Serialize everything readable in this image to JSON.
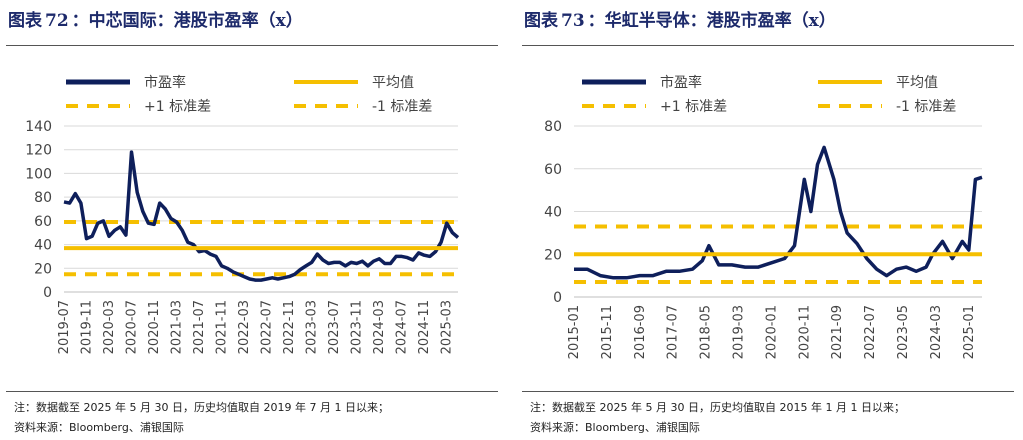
{
  "panels": [
    {
      "fig_label": "图表",
      "fig_num": "72",
      "title": "：中芯国际：港股市盈率（x）",
      "note": "注：数据截至 2025 年 5 月 30 日，历史均值取自 2019 年 7 月 1 日以来；",
      "source": "资料来源：Bloomberg、浦银国际",
      "chart_data": {
        "type": "line",
        "legend": [
          "市盈率",
          "平均值",
          "+1 标准差",
          "-1 标准差"
        ],
        "y_ticks": [
          "0",
          "20",
          "40",
          "60",
          "80",
          "100",
          "120",
          "140"
        ],
        "ylim": [
          0,
          140
        ],
        "x_ticks": [
          "2019-07",
          "2019-11",
          "2020-03",
          "2020-07",
          "2020-11",
          "2021-03",
          "2021-07",
          "2021-11",
          "2022-03",
          "2022-07",
          "2022-11",
          "2023-03",
          "2023-07",
          "2023-11",
          "2024-03",
          "2024-07",
          "2024-11",
          "2025-03"
        ],
        "x_range": [
          "2019-07",
          "2025-05"
        ],
        "mean": 37,
        "plus1sd": 59,
        "minus1sd": 15,
        "series": [
          {
            "name": "市盈率",
            "x": [
              "2019-07",
              "2019-08",
              "2019-09",
              "2019-10",
              "2019-11",
              "2019-12",
              "2020-01",
              "2020-02",
              "2020-03",
              "2020-04",
              "2020-05",
              "2020-06",
              "2020-07",
              "2020-08",
              "2020-09",
              "2020-10",
              "2020-11",
              "2020-12",
              "2021-01",
              "2021-02",
              "2021-03",
              "2021-04",
              "2021-05",
              "2021-06",
              "2021-07",
              "2021-08",
              "2021-09",
              "2021-10",
              "2021-11",
              "2021-12",
              "2022-01",
              "2022-02",
              "2022-03",
              "2022-04",
              "2022-05",
              "2022-06",
              "2022-07",
              "2022-08",
              "2022-09",
              "2022-10",
              "2022-11",
              "2022-12",
              "2023-01",
              "2023-02",
              "2023-03",
              "2023-04",
              "2023-05",
              "2023-06",
              "2023-07",
              "2023-08",
              "2023-09",
              "2023-10",
              "2023-11",
              "2023-12",
              "2024-01",
              "2024-02",
              "2024-03",
              "2024-04",
              "2024-05",
              "2024-06",
              "2024-07",
              "2024-08",
              "2024-09",
              "2024-10",
              "2024-11",
              "2024-12",
              "2025-01",
              "2025-02",
              "2025-03",
              "2025-04",
              "2025-05"
            ],
            "values": [
              76,
              75,
              83,
              75,
              45,
              47,
              58,
              60,
              47,
              52,
              55,
              48,
              118,
              84,
              68,
              58,
              57,
              75,
              70,
              62,
              59,
              52,
              42,
              40,
              34,
              35,
              32,
              30,
              22,
              20,
              17,
              15,
              13,
              11,
              10,
              10,
              11,
              12,
              11,
              12,
              13,
              15,
              19,
              22,
              25,
              32,
              27,
              24,
              25,
              25,
              22,
              25,
              24,
              26,
              22,
              26,
              28,
              24,
              24,
              30,
              30,
              29,
              27,
              33,
              31,
              30,
              34,
              42,
              58,
              50,
              46
            ]
          }
        ]
      }
    },
    {
      "fig_label": "图表",
      "fig_num": "73",
      "title": "：华虹半导体：港股市盈率（x）",
      "note": "注：数据截至 2025 年 5 月 30 日，历史均值取自 2015 年 1 月 1 日以来；",
      "source": "资料来源：Bloomberg、浦银国际",
      "chart_data": {
        "type": "line",
        "legend": [
          "市盈率",
          "平均值",
          "+1 标准差",
          "-1 标准差"
        ],
        "y_ticks": [
          "0",
          "20",
          "40",
          "60",
          "80"
        ],
        "ylim": [
          0,
          80
        ],
        "x_ticks": [
          "2015-01",
          "2015-11",
          "2016-09",
          "2017-07",
          "2018-05",
          "2019-03",
          "2020-01",
          "2020-11",
          "2021-09",
          "2022-07",
          "2023-05",
          "2024-03",
          "2025-01"
        ],
        "x_range": [
          "2015-01",
          "2025-05"
        ],
        "mean": 20,
        "plus1sd": 33,
        "minus1sd": 7,
        "series": [
          {
            "name": "市盈率",
            "x": [
              "2015-01",
              "2015-05",
              "2015-09",
              "2016-01",
              "2016-05",
              "2016-09",
              "2017-01",
              "2017-05",
              "2017-09",
              "2018-01",
              "2018-04",
              "2018-06",
              "2018-09",
              "2019-01",
              "2019-05",
              "2019-09",
              "2020-01",
              "2020-05",
              "2020-08",
              "2020-11",
              "2021-01",
              "2021-03",
              "2021-05",
              "2021-08",
              "2021-10",
              "2021-12",
              "2022-03",
              "2022-06",
              "2022-09",
              "2022-12",
              "2023-03",
              "2023-06",
              "2023-09",
              "2023-12",
              "2024-02",
              "2024-05",
              "2024-08",
              "2024-11",
              "2025-01",
              "2025-03",
              "2025-05"
            ],
            "values": [
              13,
              13,
              10,
              9,
              9,
              10,
              10,
              12,
              12,
              13,
              17,
              24,
              15,
              15,
              14,
              14,
              16,
              18,
              24,
              55,
              40,
              62,
              70,
              55,
              40,
              30,
              25,
              18,
              13,
              10,
              13,
              14,
              12,
              14,
              20,
              26,
              18,
              26,
              22,
              55,
              56
            ]
          }
        ]
      }
    }
  ]
}
